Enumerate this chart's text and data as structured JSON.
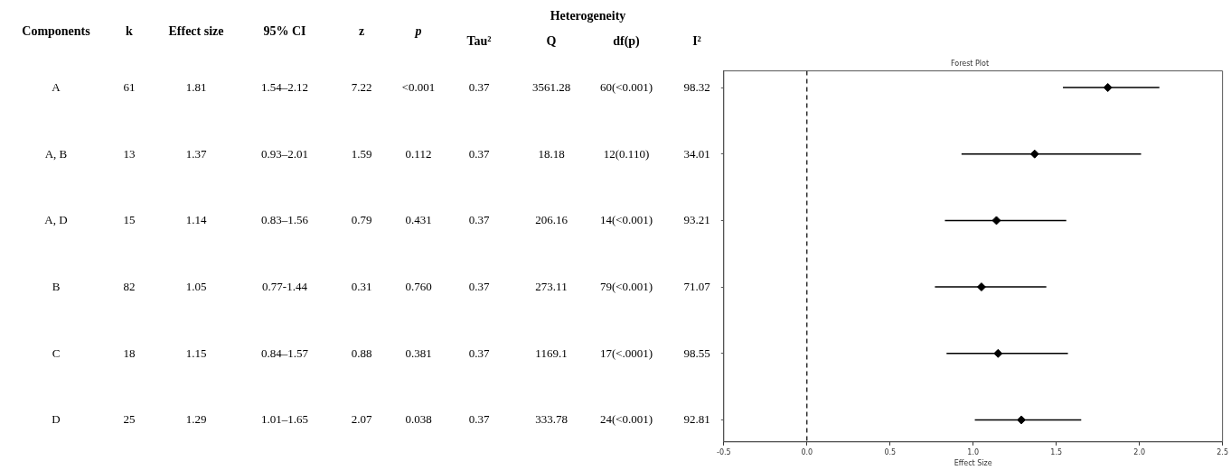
{
  "chart_data": [
    {
      "type": "other",
      "annotations": [
        "Heterogeneity"
      ],
      "categories": [
        "Components",
        "k",
        "Effect size",
        "95% CI",
        "z",
        "p",
        "Tau²",
        "Q",
        "df(p)",
        "I²"
      ],
      "cell_labels": [
        [
          "A",
          "61",
          "1.81",
          "1.54–2.12",
          "7.22",
          "<0.001",
          "0.37",
          "3561.28",
          "60(<0.001)",
          "98.32"
        ],
        [
          "A, B",
          "13",
          "1.37",
          "0.93–2.01",
          "1.59",
          "0.112",
          "0.37",
          "18.18",
          "12(0.110)",
          "34.01"
        ],
        [
          "A, D",
          "15",
          "1.14",
          "0.83–1.56",
          "0.79",
          "0.431",
          "0.37",
          "206.16",
          "14(<0.001)",
          "93.21"
        ],
        [
          "B",
          "82",
          "1.05",
          "0.77-1.44",
          "0.31",
          "0.760",
          "0.37",
          "273.11",
          "79(<0.001)",
          "71.07"
        ],
        [
          "C",
          "18",
          "1.15",
          "0.84–1.57",
          "0.88",
          "0.381",
          "0.37",
          "1169.1",
          "17(<.0001)",
          "98.55"
        ],
        [
          "D",
          "25",
          "1.29",
          "1.01–1.65",
          "2.07",
          "0.038",
          "0.37",
          "333.78",
          "24(<0.001)",
          "92.81"
        ]
      ]
    },
    {
      "type": "scatter",
      "title": "Forest Plot",
      "xlabel": "Effect Size",
      "orientation": "horizontal",
      "categories": [
        null,
        null,
        null,
        null,
        null,
        null
      ],
      "values": [
        1.81,
        1.37,
        1.14,
        1.05,
        1.15,
        1.29
      ],
      "errors": [
        [
          1.54,
          2.12
        ],
        [
          0.93,
          2.01
        ],
        [
          0.83,
          1.56
        ],
        [
          0.77,
          1.44
        ],
        [
          0.84,
          1.57
        ],
        [
          1.01,
          1.65
        ]
      ],
      "color": "#000000",
      "marker": "diamond",
      "tick_labels": "x",
      "grid": false,
      "legend": false,
      "xlim": [
        -0.5,
        2.5
      ],
      "xticks": [
        -0.5,
        {
          "value": 0,
          "label": "0.0"
        },
        0.5,
        {
          "value": 1,
          "label": "1.0"
        },
        1.5,
        {
          "value": 2,
          "label": "2.0"
        },
        2.5
      ],
      "ref_lines": [
        {
          "axis": "x",
          "value": 0,
          "label": null,
          "color": "#000000",
          "line_style": "dashed"
        }
      ]
    }
  ]
}
